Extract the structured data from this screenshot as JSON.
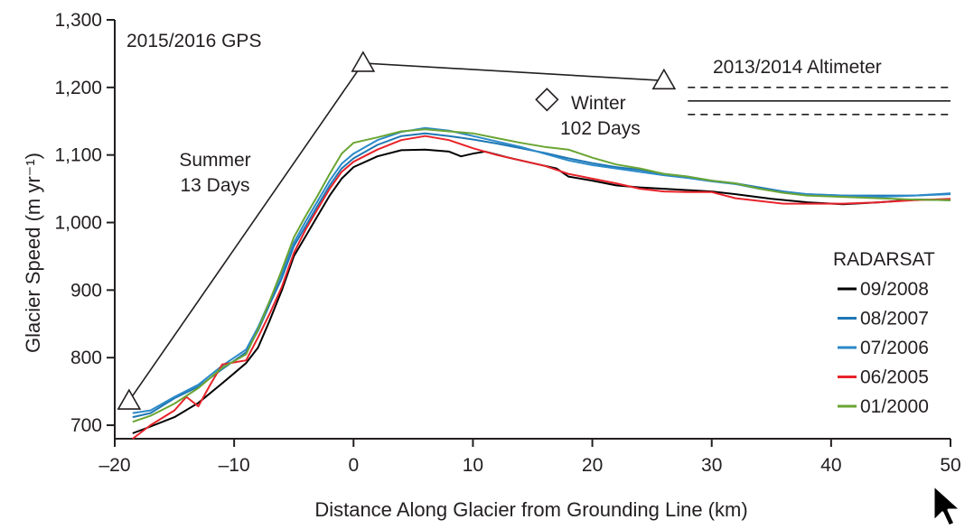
{
  "chart_data": {
    "type": "line",
    "xlabel": "Distance Along Glacier from Grounding Line (km)",
    "ylabel": "Glacier Speed (m yr⁻¹)",
    "xlim": [
      -20,
      50
    ],
    "ylim": [
      680,
      1300
    ],
    "x_ticks": [
      -20,
      -10,
      0,
      10,
      20,
      30,
      40,
      50
    ],
    "x_tick_labels": [
      "–20",
      "–10",
      "0",
      "10",
      "20",
      "30",
      "40",
      "50"
    ],
    "y_ticks": [
      700,
      800,
      900,
      1000,
      1100,
      1200,
      1300
    ],
    "y_tick_labels": [
      "700",
      "800",
      "900",
      "1,000",
      "1,100",
      "1,200",
      "1,300"
    ],
    "grid": false,
    "legend": {
      "title": "RADARSAT",
      "placement": "right",
      "entries": [
        "09/2008",
        "08/2007",
        "07/2006",
        "06/2005",
        "01/2000"
      ]
    },
    "gps": {
      "label": "2015/2016 GPS",
      "points": [
        {
          "x": -18.8,
          "y": 736
        },
        {
          "x": 0.8,
          "y": 1236
        },
        {
          "x": 26,
          "y": 1210
        }
      ],
      "summer_label": [
        "Summer",
        "13 Days"
      ],
      "winter_label": [
        "Winter",
        "102 Days"
      ],
      "winter_marker": {
        "x": 16.2,
        "y": 1182
      }
    },
    "altimeter": {
      "label": "2013/2014 Altimeter",
      "x_range": [
        28,
        50
      ],
      "value": 1180,
      "lower": 1160,
      "upper": 1200
    },
    "series": [
      {
        "name": "09/2008",
        "color": "#000000",
        "points": [
          [
            -18.5,
            688
          ],
          [
            -17,
            698
          ],
          [
            -15,
            712
          ],
          [
            -13,
            733
          ],
          [
            -11,
            762
          ],
          [
            -9,
            792
          ],
          [
            -8,
            815
          ],
          [
            -7,
            856
          ],
          [
            -6,
            900
          ],
          [
            -5,
            950
          ],
          [
            -4,
            980
          ],
          [
            -3,
            1010
          ],
          [
            -2,
            1040
          ],
          [
            -1,
            1065
          ],
          [
            0,
            1082
          ],
          [
            2,
            1098
          ],
          [
            4,
            1107
          ],
          [
            6,
            1108
          ],
          [
            8,
            1105
          ],
          [
            9,
            1098
          ],
          [
            10,
            1102
          ],
          [
            11,
            1105
          ],
          [
            13,
            1096
          ],
          [
            15,
            1088
          ],
          [
            17,
            1080
          ],
          [
            18,
            1068
          ],
          [
            20,
            1062
          ],
          [
            22,
            1055
          ],
          [
            24,
            1052
          ],
          [
            26,
            1050
          ],
          [
            28,
            1048
          ],
          [
            30,
            1046
          ],
          [
            32,
            1042
          ],
          [
            35,
            1035
          ],
          [
            38,
            1030
          ],
          [
            41,
            1027
          ],
          [
            44,
            1030
          ],
          [
            47,
            1034
          ],
          [
            50,
            1033
          ]
        ]
      },
      {
        "name": "08/2007",
        "color": "#1f77b4",
        "points": [
          [
            -18.5,
            712
          ],
          [
            -17,
            718
          ],
          [
            -15,
            740
          ],
          [
            -13,
            757
          ],
          [
            -11,
            783
          ],
          [
            -9,
            808
          ],
          [
            -8,
            840
          ],
          [
            -7,
            880
          ],
          [
            -6,
            918
          ],
          [
            -5,
            965
          ],
          [
            -4,
            995
          ],
          [
            -3,
            1025
          ],
          [
            -2,
            1055
          ],
          [
            -1,
            1080
          ],
          [
            0,
            1095
          ],
          [
            2,
            1115
          ],
          [
            4,
            1128
          ],
          [
            6,
            1132
          ],
          [
            8,
            1128
          ],
          [
            10,
            1123
          ],
          [
            12,
            1117
          ],
          [
            14,
            1110
          ],
          [
            16,
            1103
          ],
          [
            18,
            1095
          ],
          [
            20,
            1088
          ],
          [
            22,
            1082
          ],
          [
            24,
            1078
          ],
          [
            26,
            1072
          ],
          [
            28,
            1068
          ],
          [
            30,
            1062
          ],
          [
            32,
            1058
          ],
          [
            34,
            1052
          ],
          [
            36,
            1046
          ],
          [
            38,
            1042
          ],
          [
            41,
            1040
          ],
          [
            44,
            1040
          ],
          [
            47,
            1040
          ],
          [
            50,
            1043
          ]
        ]
      },
      {
        "name": "07/2006",
        "color": "#2b8ac9",
        "points": [
          [
            -18.5,
            718
          ],
          [
            -17,
            722
          ],
          [
            -15,
            742
          ],
          [
            -13,
            760
          ],
          [
            -11,
            788
          ],
          [
            -9,
            812
          ],
          [
            -8,
            845
          ],
          [
            -7,
            885
          ],
          [
            -6,
            925
          ],
          [
            -5,
            970
          ],
          [
            -4,
            1002
          ],
          [
            -3,
            1032
          ],
          [
            -2,
            1062
          ],
          [
            -1,
            1087
          ],
          [
            0,
            1102
          ],
          [
            2,
            1122
          ],
          [
            4,
            1134
          ],
          [
            6,
            1140
          ],
          [
            8,
            1136
          ],
          [
            10,
            1128
          ],
          [
            12,
            1120
          ],
          [
            14,
            1112
          ],
          [
            16,
            1102
          ],
          [
            18,
            1092
          ],
          [
            20,
            1085
          ],
          [
            22,
            1080
          ],
          [
            24,
            1075
          ],
          [
            26,
            1070
          ],
          [
            28,
            1066
          ],
          [
            30,
            1061
          ],
          [
            32,
            1057
          ],
          [
            34,
            1050
          ],
          [
            36,
            1045
          ],
          [
            38,
            1042
          ],
          [
            41,
            1040
          ],
          [
            44,
            1038
          ],
          [
            47,
            1040
          ],
          [
            50,
            1042
          ]
        ]
      },
      {
        "name": "06/2005",
        "color": "#e8232a",
        "points": [
          [
            -18.5,
            680
          ],
          [
            -17,
            700
          ],
          [
            -15,
            722
          ],
          [
            -14,
            742
          ],
          [
            -13,
            728
          ],
          [
            -12,
            760
          ],
          [
            -11,
            790
          ],
          [
            -9,
            796
          ],
          [
            -8,
            830
          ],
          [
            -7,
            866
          ],
          [
            -6,
            905
          ],
          [
            -5,
            955
          ],
          [
            -4,
            990
          ],
          [
            -3,
            1020
          ],
          [
            -2,
            1050
          ],
          [
            -1,
            1075
          ],
          [
            0,
            1090
          ],
          [
            2,
            1108
          ],
          [
            4,
            1122
          ],
          [
            6,
            1128
          ],
          [
            8,
            1122
          ],
          [
            10,
            1110
          ],
          [
            12,
            1100
          ],
          [
            14,
            1092
          ],
          [
            16,
            1084
          ],
          [
            18,
            1072
          ],
          [
            20,
            1065
          ],
          [
            22,
            1058
          ],
          [
            24,
            1050
          ],
          [
            26,
            1046
          ],
          [
            28,
            1045
          ],
          [
            30,
            1045
          ],
          [
            32,
            1036
          ],
          [
            34,
            1032
          ],
          [
            36,
            1028
          ],
          [
            38,
            1028
          ],
          [
            41,
            1028
          ],
          [
            44,
            1030
          ],
          [
            47,
            1033
          ],
          [
            50,
            1035
          ]
        ]
      },
      {
        "name": "01/2000",
        "color": "#6aa533",
        "points": [
          [
            -18.5,
            705
          ],
          [
            -17,
            714
          ],
          [
            -15,
            732
          ],
          [
            -13,
            755
          ],
          [
            -11,
            785
          ],
          [
            -9,
            805
          ],
          [
            -8,
            842
          ],
          [
            -7,
            885
          ],
          [
            -6,
            930
          ],
          [
            -5,
            978
          ],
          [
            -4,
            1010
          ],
          [
            -3,
            1040
          ],
          [
            -2,
            1072
          ],
          [
            -1,
            1102
          ],
          [
            0,
            1118
          ],
          [
            2,
            1126
          ],
          [
            4,
            1135
          ],
          [
            6,
            1138
          ],
          [
            8,
            1135
          ],
          [
            10,
            1132
          ],
          [
            12,
            1125
          ],
          [
            14,
            1118
          ],
          [
            16,
            1112
          ],
          [
            18,
            1108
          ],
          [
            20,
            1096
          ],
          [
            22,
            1086
          ],
          [
            24,
            1080
          ],
          [
            26,
            1072
          ],
          [
            28,
            1068
          ],
          [
            30,
            1062
          ],
          [
            32,
            1058
          ],
          [
            34,
            1050
          ],
          [
            36,
            1044
          ],
          [
            38,
            1040
          ],
          [
            41,
            1038
          ],
          [
            44,
            1036
          ],
          [
            47,
            1034
          ],
          [
            50,
            1033
          ]
        ]
      }
    ]
  }
}
